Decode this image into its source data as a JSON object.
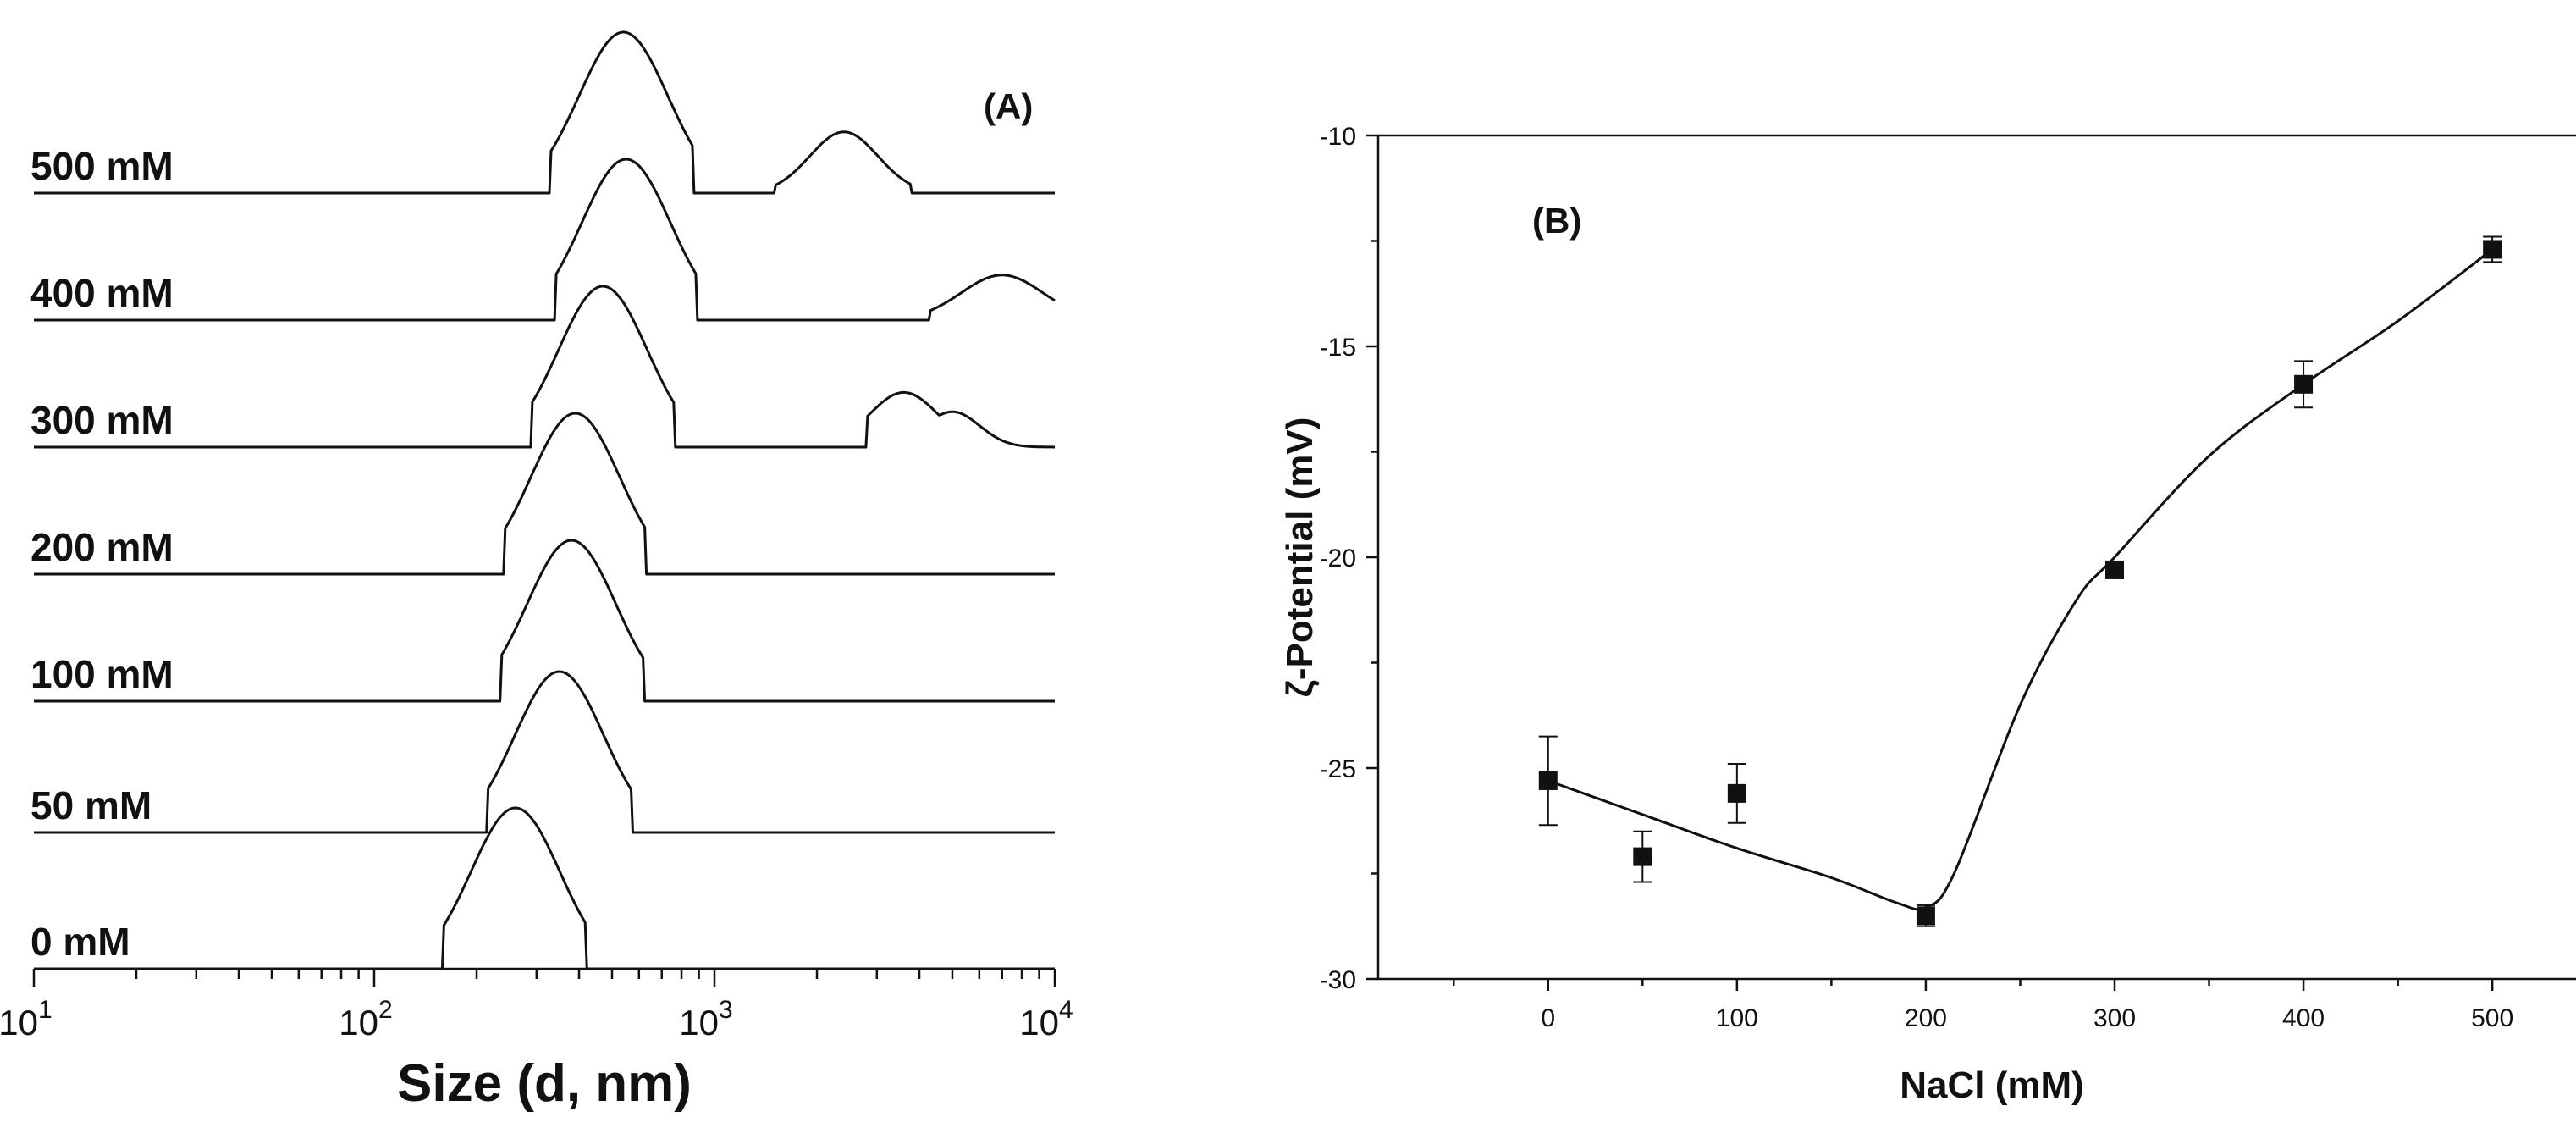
{
  "chart_data": [
    {
      "panel": "(A)",
      "type": "line",
      "title": "",
      "xlabel": "Size (d, nm)",
      "ylabel": "",
      "xscale": "log",
      "xlim": [
        10,
        10000
      ],
      "x_ticks": [
        {
          "base": "10",
          "exp": "1"
        },
        {
          "base": "10",
          "exp": "2"
        },
        {
          "base": "10",
          "exp": "3"
        },
        {
          "base": "10",
          "exp": "4"
        }
      ],
      "series": [
        {
          "name": "0 mM",
          "peaks": [
            {
              "center": 260,
              "height": 1.0,
              "width": 0.13,
              "start": 160,
              "end": 420
            }
          ]
        },
        {
          "name": "50 mM",
          "peaks": [
            {
              "center": 350,
              "height": 1.0,
              "width": 0.13,
              "start": 215,
              "end": 570
            }
          ]
        },
        {
          "name": "100 mM",
          "peaks": [
            {
              "center": 380,
              "height": 1.0,
              "width": 0.13,
              "start": 235,
              "end": 620
            }
          ]
        },
        {
          "name": "200 mM",
          "peaks": [
            {
              "center": 390,
              "height": 1.0,
              "width": 0.13,
              "start": 240,
              "end": 630
            }
          ]
        },
        {
          "name": "300 mM",
          "peaks": [
            {
              "center": 470,
              "height": 1.0,
              "width": 0.13,
              "start": 290,
              "end": 760
            },
            {
              "center": 3600,
              "height": 0.34,
              "width": 0.1,
              "start": 2800,
              "end": 10000
            },
            {
              "center": 5000,
              "height": 0.22,
              "width": 0.08,
              "start": 2800,
              "end": 10000
            }
          ]
        },
        {
          "name": "400 mM",
          "peaks": [
            {
              "center": 550,
              "height": 1.0,
              "width": 0.13,
              "start": 340,
              "end": 890
            },
            {
              "center": 7000,
              "height": 0.28,
              "width": 0.12,
              "start": 4300,
              "end": 10000
            }
          ]
        },
        {
          "name": "500 mM",
          "peaks": [
            {
              "center": 540,
              "height": 1.0,
              "width": 0.13,
              "start": 330,
              "end": 870
            },
            {
              "center": 2400,
              "height": 0.38,
              "width": 0.1,
              "start": 1500,
              "end": 3800
            }
          ]
        }
      ]
    },
    {
      "panel": "(B)",
      "type": "scatter",
      "title": "",
      "xlabel": "NaCl (mM)",
      "ylabel": "ζ-Potential (mV)",
      "xlim": [
        -90,
        560
      ],
      "ylim": [
        -30,
        -10
      ],
      "x_ticks": [
        "0",
        "100",
        "200",
        "300",
        "400",
        "500"
      ],
      "y_ticks": [
        "-10",
        "-15",
        "-20",
        "-25",
        "-30"
      ],
      "points": [
        {
          "x": 0,
          "y": -25.3,
          "err": 1.05
        },
        {
          "x": 50,
          "y": -27.1,
          "err": 0.6
        },
        {
          "x": 100,
          "y": -25.6,
          "err": 0.7
        },
        {
          "x": 200,
          "y": -28.5,
          "err": 0.25
        },
        {
          "x": 300,
          "y": -20.3,
          "err": 0.15
        },
        {
          "x": 400,
          "y": -15.9,
          "err": 0.55
        },
        {
          "x": 500,
          "y": -12.7,
          "err": 0.3
        }
      ],
      "fit_line": [
        {
          "x": 0,
          "y": -25.3
        },
        {
          "x": 50,
          "y": -26.1
        },
        {
          "x": 100,
          "y": -26.9
        },
        {
          "x": 150,
          "y": -27.6
        },
        {
          "x": 185,
          "y": -28.2
        },
        {
          "x": 200,
          "y": -28.3
        },
        {
          "x": 215,
          "y": -27.5
        },
        {
          "x": 250,
          "y": -23.5
        },
        {
          "x": 280,
          "y": -21.0
        },
        {
          "x": 300,
          "y": -20.0
        },
        {
          "x": 350,
          "y": -17.6
        },
        {
          "x": 400,
          "y": -15.9
        },
        {
          "x": 450,
          "y": -14.4
        },
        {
          "x": 500,
          "y": -12.7
        }
      ]
    }
  ]
}
